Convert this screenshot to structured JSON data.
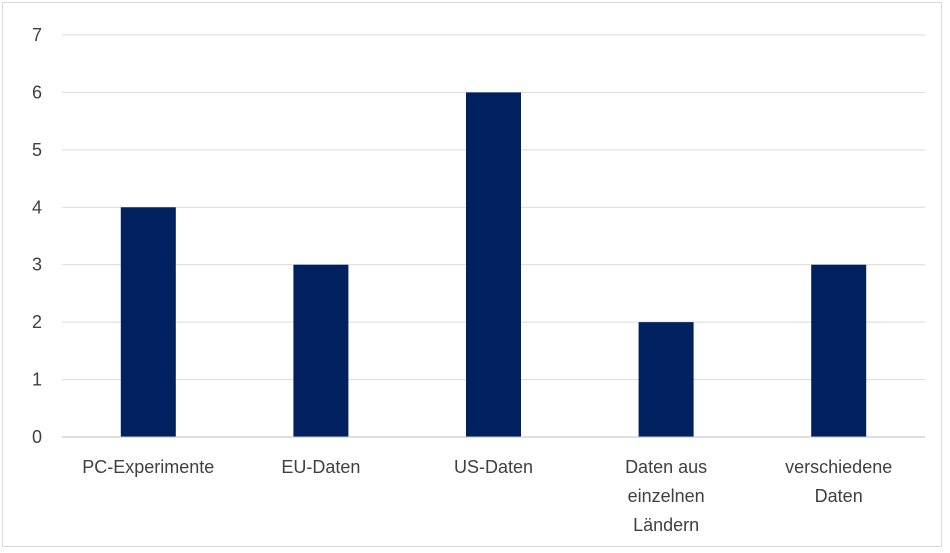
{
  "chart_data": {
    "type": "bar",
    "title": "",
    "xlabel": "",
    "ylabel": "",
    "categories": [
      [
        "PC-Experimente"
      ],
      [
        "EU-Daten"
      ],
      [
        "US-Daten"
      ],
      [
        "Daten aus",
        "einzelnen",
        "Ländern"
      ],
      [
        "verschiedene",
        "Daten"
      ]
    ],
    "values": [
      4,
      3,
      6,
      2,
      3
    ],
    "ylim": [
      0,
      7
    ],
    "yticks": [
      0,
      1,
      2,
      3,
      4,
      5,
      6,
      7
    ],
    "grid": true,
    "legend": "none",
    "colors": {
      "bar": "#002060",
      "grid": "#d9d9d9",
      "axis": "#bfbfbf",
      "text": "#404040"
    }
  }
}
